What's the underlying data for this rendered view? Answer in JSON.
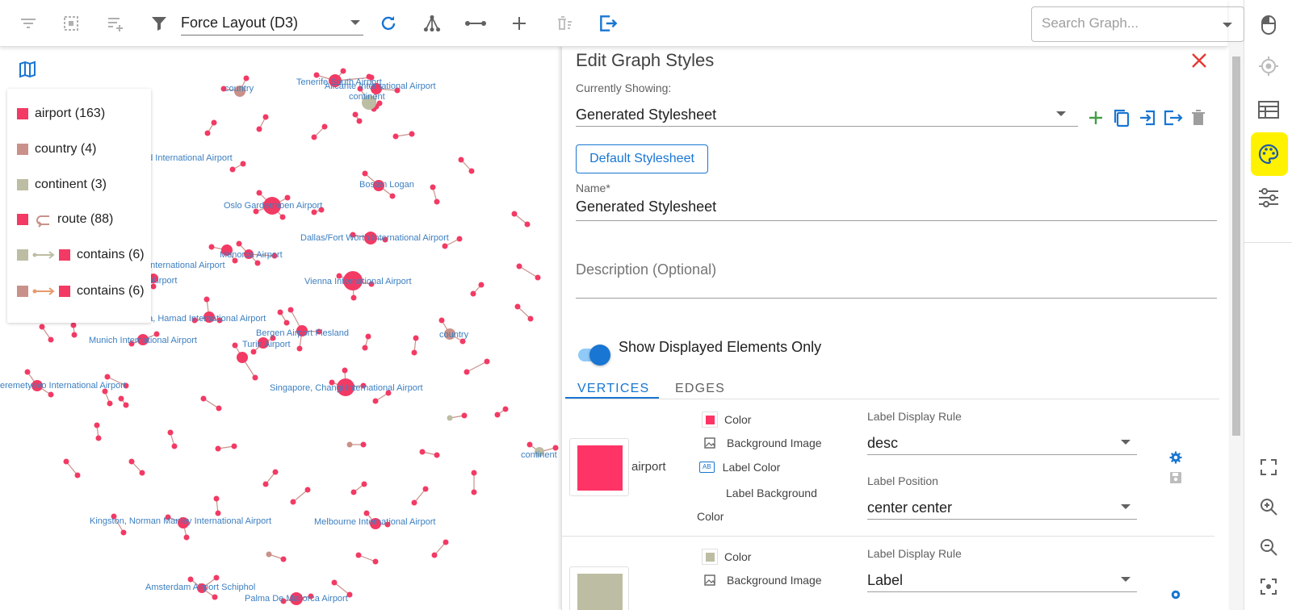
{
  "toolbar": {
    "layout_value": "Force Layout (D3)",
    "search_placeholder": "Search Graph..."
  },
  "legend": {
    "items": [
      {
        "label": "airport (163)",
        "color": "#f23a64"
      },
      {
        "label": "country (4)",
        "color": "#c9918a"
      },
      {
        "label": "continent (3)",
        "color": "#bdbda3"
      },
      {
        "label": "route (88)",
        "color": "#f23a64"
      },
      {
        "label": "contains (6)",
        "from_color": "#bdbda3",
        "to_color": "#f23a64"
      },
      {
        "label": "contains (6)",
        "from_color": "#c9918a",
        "to_color": "#f23a64"
      }
    ]
  },
  "graph": {
    "labels": [
      "country",
      "Tenerife South Airport",
      "Alicante International Airport",
      "continent",
      "od International Airport",
      "Boston Logan",
      "Oslo Gardermoen Airport",
      "Dallas/Fort Worth International Airport",
      "Menorca Airport",
      "t International Airport",
      "Airport",
      "Vienna International Airport",
      "ha, Hamad International Airport",
      "Bergen Airport Flesland",
      "Munich International Airport",
      "Turin Airport",
      "country",
      "eremetyevo International Airport",
      "Singapore, Changi International Airport",
      "continent",
      "Kingston, Norman Manley International Airport",
      "Melbourne International Airport",
      "Amsterdam Airport Schiphol",
      "Palma De Mallorca Airport"
    ]
  },
  "panel": {
    "title": "Edit Graph Styles",
    "currently_showing_label": "Currently Showing:",
    "stylesheet_value": "Generated Stylesheet",
    "default_button": "Default Stylesheet",
    "name_label": "Name*",
    "name_value": "Generated Stylesheet",
    "description_placeholder": "Description (Optional)",
    "toggle_label": "Show Displayed Elements Only",
    "tabs": [
      "VERTICES",
      "EDGES"
    ],
    "vertices": [
      {
        "name": "airport",
        "color": "#ff3466",
        "props": [
          "Color",
          "Background Image",
          "Label Color",
          "Label Background",
          "Color"
        ],
        "rule_label": "Label Display Rule",
        "rule_value": "desc",
        "position_label": "Label Position",
        "position_value": "center center"
      },
      {
        "name": "",
        "color": "#bdbda3",
        "props": [
          "Color",
          "Background Image"
        ],
        "rule_label": "Label Display Rule",
        "rule_value": "Label"
      }
    ]
  },
  "colors": {
    "accent": "#1976d2",
    "airport": "#f23a64",
    "country": "#c9918a",
    "continent": "#bdbda3",
    "label": "#3c7fc1",
    "highlight": "#fff200"
  }
}
